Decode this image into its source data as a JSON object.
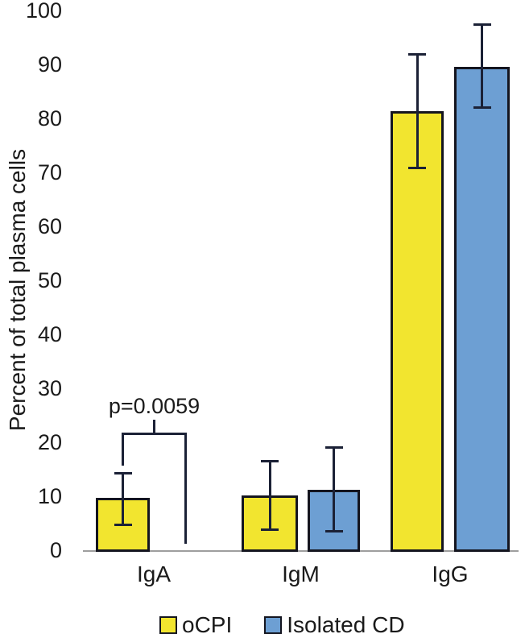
{
  "chart_data": {
    "type": "bar",
    "title": "",
    "xlabel": "",
    "ylabel": "Percent of total plasma cells",
    "ylim": [
      0,
      100
    ],
    "yticks": [
      0,
      10,
      20,
      30,
      40,
      50,
      60,
      70,
      80,
      90,
      100
    ],
    "grid": false,
    "legend_position": "bottom",
    "categories": [
      "IgA",
      "IgM",
      "IgG"
    ],
    "series": [
      {
        "name": "oCPI",
        "color": "#F2E52F",
        "values": [
          9.7,
          10.1,
          81.3
        ],
        "err_low": [
          4.6,
          3.7,
          70.8
        ],
        "err_high": [
          14.3,
          16.6,
          92.0
        ]
      },
      {
        "name": "Isolated CD",
        "color": "#6D9FD3",
        "values": [
          0,
          11.2,
          89.5
        ],
        "err_low": [
          null,
          3.4,
          81.9
        ],
        "err_high": [
          null,
          19.1,
          97.5
        ]
      }
    ],
    "annotation": {
      "text": "p=0.0059",
      "category": "IgA",
      "compares": [
        "oCPI",
        "Isolated CD"
      ],
      "bracket_top_value": 21.8,
      "left_arm_bottom_value": 16.1,
      "right_arm_bottom_value": 1.6
    }
  },
  "legend": {
    "items": [
      {
        "label": "oCPI",
        "color": "#F2E52F"
      },
      {
        "label": "Isolated CD",
        "color": "#6D9FD3"
      }
    ]
  },
  "colors": {
    "bar_border": "#14151F",
    "error_bar": "#1B2136",
    "axis_line": "#9E9E9E",
    "text": "#1A1A1A",
    "background": "#FFFFFF"
  }
}
